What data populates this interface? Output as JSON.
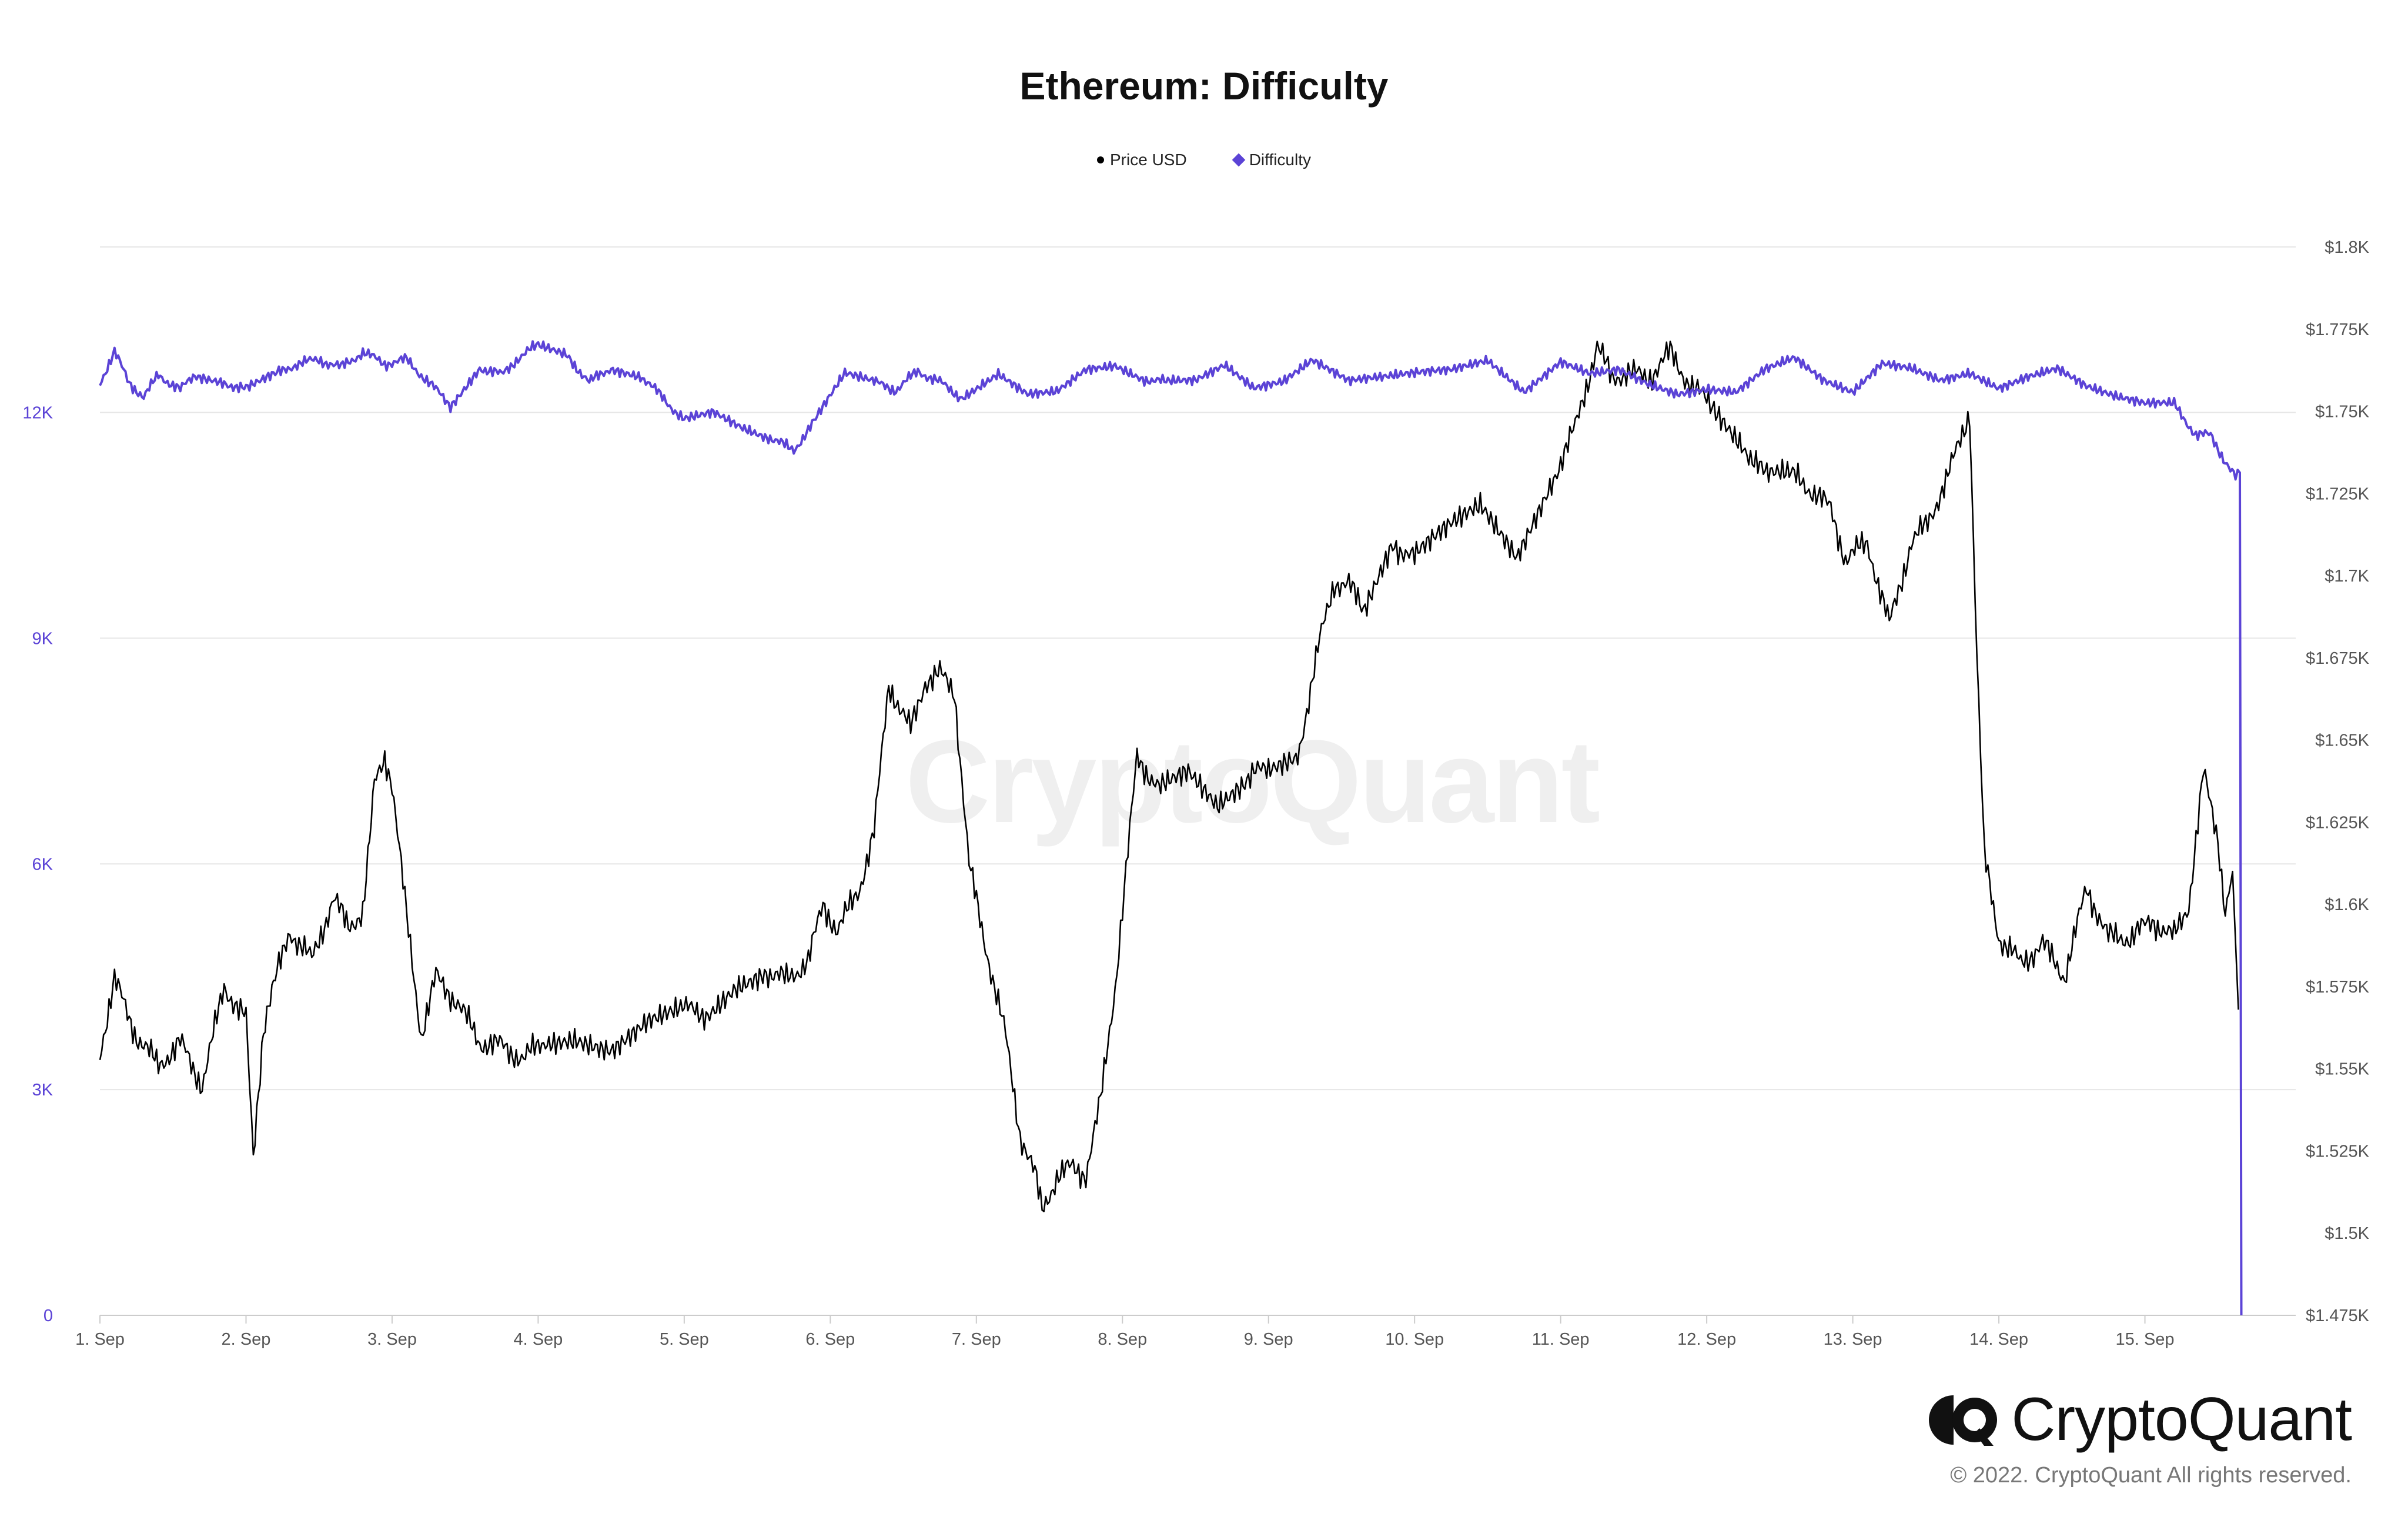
{
  "chart_data": {
    "type": "line",
    "title": "Ethereum: Difficulty",
    "legend_position": "top-center",
    "grid": true,
    "x": {
      "categories": [
        "1. Sep",
        "2. Sep",
        "3. Sep",
        "4. Sep",
        "5. Sep",
        "6. Sep",
        "7. Sep",
        "8. Sep",
        "9. Sep",
        "10. Sep",
        "11. Sep",
        "12. Sep",
        "13. Sep",
        "14. Sep",
        "15. Sep"
      ],
      "range": [
        1,
        15.67
      ]
    },
    "y_left": {
      "ticks": [
        "0",
        "3K",
        "6K",
        "9K",
        "12K"
      ],
      "range": [
        0,
        14200
      ],
      "color": "#5b43d6"
    },
    "y_right": {
      "ticks": [
        "$1.475K",
        "$1.5K",
        "$1.525K",
        "$1.55K",
        "$1.575K",
        "$1.6K",
        "$1.625K",
        "$1.65K",
        "$1.675K",
        "$1.7K",
        "$1.725K",
        "$1.75K",
        "$1.775K",
        "$1.8K"
      ],
      "range": [
        1475,
        1800
      ],
      "color": "#555555"
    },
    "series": [
      {
        "name": "Price USD",
        "axis": "right",
        "color": "#000000",
        "x": [
          1.0,
          1.1,
          1.25,
          1.4,
          1.55,
          1.7,
          1.85,
          2.0,
          2.05,
          2.12,
          2.2,
          2.3,
          2.45,
          2.6,
          2.7,
          2.8,
          2.88,
          2.95,
          3.0,
          3.1,
          3.2,
          3.3,
          3.45,
          3.6,
          3.75,
          3.9,
          4.05,
          4.25,
          4.5,
          4.75,
          5.0,
          5.15,
          5.35,
          5.55,
          5.7,
          5.85,
          5.95,
          6.05,
          6.2,
          6.3,
          6.4,
          6.55,
          6.65,
          6.75,
          6.85,
          6.95,
          7.05,
          7.2,
          7.3,
          7.4,
          7.45,
          7.55,
          7.65,
          7.75,
          7.85,
          7.95,
          8.1,
          8.25,
          8.45,
          8.65,
          8.85,
          9.0,
          9.2,
          9.35,
          9.45,
          9.55,
          9.65,
          9.85,
          10.0,
          10.25,
          10.45,
          10.7,
          10.95,
          11.1,
          11.25,
          11.35,
          11.45,
          11.6,
          11.75,
          11.9,
          12.05,
          12.25,
          12.4,
          12.6,
          12.75,
          12.85,
          12.95,
          13.1,
          13.25,
          13.4,
          13.5,
          13.65,
          13.8,
          13.85,
          13.9,
          14.0,
          14.15,
          14.3,
          14.45,
          14.6,
          14.75,
          14.9,
          15.05,
          15.2,
          15.3,
          15.4,
          15.5,
          15.55,
          15.6,
          15.64
        ],
        "y": [
          1555,
          1577,
          1560,
          1551,
          1558,
          1545,
          1575,
          1565,
          1523,
          1560,
          1577,
          1592,
          1583,
          1602,
          1593,
          1598,
          1640,
          1645,
          1637,
          1596,
          1560,
          1578,
          1570,
          1558,
          1557,
          1553,
          1559,
          1560,
          1557,
          1565,
          1568,
          1567,
          1576,
          1580,
          1577,
          1583,
          1600,
          1592,
          1605,
          1622,
          1667,
          1653,
          1668,
          1670,
          1665,
          1612,
          1590,
          1560,
          1530,
          1518,
          1507,
          1517,
          1520,
          1518,
          1540,
          1575,
          1645,
          1635,
          1640,
          1630,
          1638,
          1642,
          1645,
          1680,
          1698,
          1697,
          1690,
          1710,
          1705,
          1715,
          1720,
          1705,
          1730,
          1745,
          1770,
          1760,
          1762,
          1760,
          1768,
          1757,
          1752,
          1740,
          1730,
          1730,
          1725,
          1720,
          1705,
          1710,
          1685,
          1710,
          1715,
          1730,
          1750,
          1675,
          1615,
          1590,
          1582,
          1588,
          1578,
          1605,
          1590,
          1590,
          1595,
          1590,
          1600,
          1640,
          1620,
          1598,
          1610,
          1568
        ]
      },
      {
        "name": "Difficulty",
        "axis": "left",
        "color": "#5b43d6",
        "x": [
          1.0,
          1.1,
          1.2,
          1.3,
          1.4,
          1.55,
          1.65,
          1.85,
          2.0,
          2.2,
          2.35,
          2.5,
          2.65,
          2.8,
          2.95,
          3.1,
          3.25,
          3.4,
          3.6,
          3.75,
          3.85,
          4.0,
          4.2,
          4.35,
          4.5,
          4.7,
          4.85,
          5.0,
          5.2,
          5.4,
          5.6,
          5.75,
          5.9,
          6.1,
          6.3,
          6.45,
          6.6,
          6.75,
          6.9,
          7.15,
          7.35,
          7.55,
          7.75,
          7.95,
          8.15,
          8.3,
          8.5,
          8.7,
          8.9,
          9.1,
          9.3,
          9.55,
          9.8,
          10.0,
          10.25,
          10.5,
          10.75,
          11.0,
          11.2,
          11.4,
          11.6,
          11.8,
          12.0,
          12.2,
          12.4,
          12.6,
          12.8,
          13.0,
          13.2,
          13.4,
          13.6,
          13.8,
          14.0,
          14.2,
          14.4,
          14.6,
          14.8,
          15.0,
          15.2,
          15.35,
          15.45,
          15.55,
          15.62,
          15.65,
          15.66
        ],
        "y": [
          12400,
          12800,
          12400,
          12200,
          12500,
          12300,
          12500,
          12400,
          12300,
          12500,
          12650,
          12700,
          12600,
          12800,
          12650,
          12700,
          12400,
          12100,
          12600,
          12500,
          12700,
          12900,
          12750,
          12400,
          12600,
          12500,
          12200,
          11900,
          12000,
          11800,
          11650,
          11500,
          11900,
          12500,
          12400,
          12300,
          12550,
          12400,
          12200,
          12500,
          12250,
          12300,
          12600,
          12650,
          12450,
          12400,
          12400,
          12600,
          12300,
          12400,
          12700,
          12400,
          12450,
          12500,
          12550,
          12700,
          12300,
          12700,
          12550,
          12600,
          12400,
          12250,
          12300,
          12250,
          12550,
          12700,
          12400,
          12250,
          12650,
          12600,
          12450,
          12550,
          12350,
          12500,
          12600,
          12350,
          12200,
          12100,
          12100,
          11700,
          11700,
          11350,
          11200,
          11200,
          0
        ]
      }
    ]
  },
  "title_text": "Ethereum: Difficulty",
  "legend": [
    {
      "label": "Price USD",
      "color": "#000000",
      "marker": "circle"
    },
    {
      "label": "Difficulty",
      "color": "#5b43d6",
      "marker": "diamond"
    }
  ],
  "watermark_text": "CryptoQuant",
  "brand": {
    "name": "CryptoQuant",
    "logo": "cryptoquant-logo-icon",
    "copyright": "© 2022. CryptoQuant All rights reserved."
  }
}
